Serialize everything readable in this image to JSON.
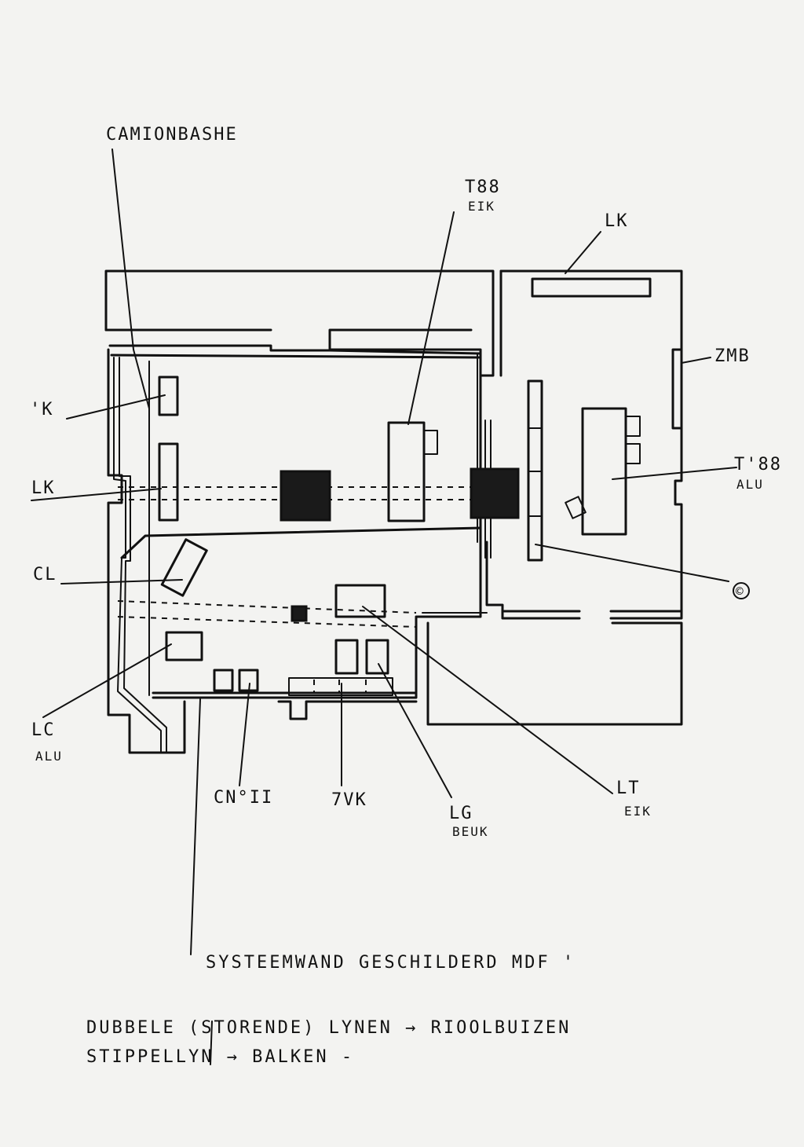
{
  "labels": {
    "camionbashe": "CAMIONBASHE",
    "t88_eik_code": "T88",
    "t88_eik_material": "EIK",
    "lk_top": "LK",
    "zmb": "ZMB",
    "lk_left_partial": "'K",
    "lk_left": "LK",
    "t88_alu_code": "T'88",
    "t88_alu_material": "ALU",
    "cl": "CL",
    "c_circle": "©",
    "lc_alu_code": "LC",
    "lc_alu_material": "ALU",
    "cno": "CN°II",
    "zvk": "7VK",
    "lt_code": "LT",
    "lt_material": "EIK",
    "lg_code": "LG",
    "lg_material": "BEUK"
  },
  "notes": {
    "systeemwand": "SYSTEEMWAND GESCHILDERD MDF '",
    "legend_line1": "DUBBELE (STORENDE) LYNEN → RIOOLBUIZEN",
    "legend_line2": "STIPPELLYN → BALKEN -"
  }
}
